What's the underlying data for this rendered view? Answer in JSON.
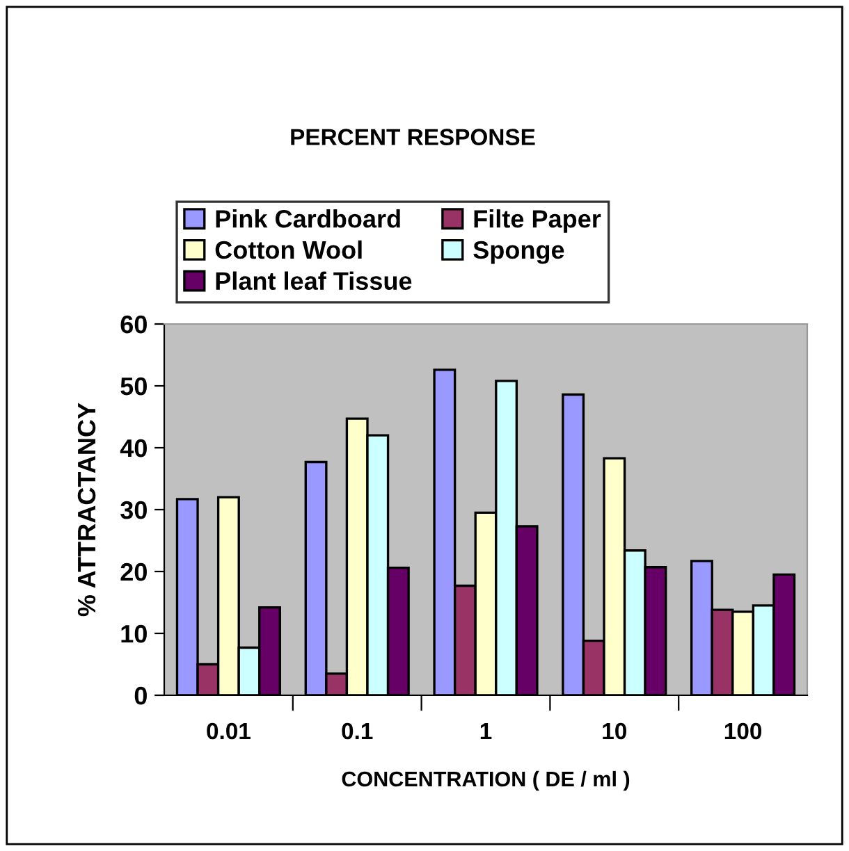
{
  "chart_data": {
    "type": "bar",
    "title": "PERCENT RESPONSE",
    "xlabel": "CONCENTRATION ( DE / ml )",
    "ylabel": "% ATTRACTANCY",
    "categories": [
      "0.01",
      "0.1",
      "1",
      "10",
      "100"
    ],
    "series": [
      {
        "name": "Pink Cardboard",
        "color": "#9999ff",
        "values": [
          31.7,
          37.7,
          52.6,
          48.6,
          21.7
        ]
      },
      {
        "name": "Filte Paper",
        "color": "#993366",
        "values": [
          5.0,
          3.5,
          17.7,
          8.8,
          13.8
        ]
      },
      {
        "name": "Cotton Wool",
        "color": "#ffffcc",
        "values": [
          32.0,
          44.7,
          29.5,
          38.3,
          13.5
        ]
      },
      {
        "name": "Sponge",
        "color": "#ccffff",
        "values": [
          7.7,
          42.0,
          50.8,
          23.4,
          14.5
        ]
      },
      {
        "name": "Plant leaf Tissue",
        "color": "#660066",
        "values": [
          14.2,
          20.6,
          27.3,
          20.7,
          19.5
        ]
      }
    ],
    "ylim": [
      0,
      60
    ],
    "yticks": [
      0,
      10,
      20,
      30,
      40,
      50,
      60
    ],
    "grid": false,
    "legend": "top"
  }
}
